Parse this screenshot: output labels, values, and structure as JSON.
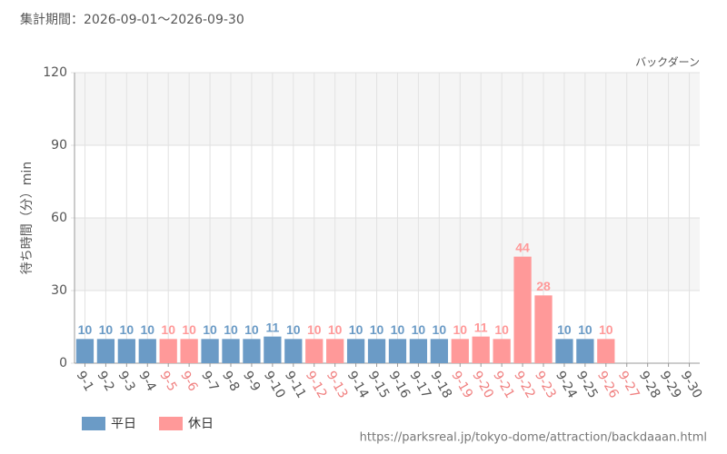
{
  "chart_data": {
    "type": "bar",
    "title": "集計期間：2026-09-01～2026-09-30",
    "subtitle": "バックダーン",
    "y_label": "待ち時間（分）min",
    "source": "https://parksreal.jp/tokyo-dome/attraction/backdaaan.html",
    "categories": [
      "9-1",
      "9-2",
      "9-3",
      "9-4",
      "9-5",
      "9-6",
      "9-7",
      "9-8",
      "9-9",
      "9-10",
      "9-11",
      "9-12",
      "9-13",
      "9-14",
      "9-15",
      "9-16",
      "9-17",
      "9-18",
      "9-19",
      "9-20",
      "9-21",
      "9-22",
      "9-23",
      "9-24",
      "9-25",
      "9-26",
      "9-27",
      "9-28",
      "9-29",
      "9-30"
    ],
    "category_colors": [
      "#555555",
      "#555555",
      "#555555",
      "#555555",
      "#f08080",
      "#f08080",
      "#555555",
      "#555555",
      "#555555",
      "#555555",
      "#555555",
      "#f08080",
      "#f08080",
      "#555555",
      "#555555",
      "#555555",
      "#555555",
      "#555555",
      "#f08080",
      "#f08080",
      "#f08080",
      "#f08080",
      "#f08080",
      "#555555",
      "#555555",
      "#f08080",
      "#f08080",
      "#555555",
      "#555555",
      "#555555"
    ],
    "series": [
      {
        "name": "平日",
        "color": "#6b9bc6",
        "values": [
          10,
          10,
          10,
          10,
          null,
          null,
          10,
          10,
          10,
          11,
          10,
          null,
          null,
          10,
          10,
          10,
          10,
          10,
          null,
          null,
          null,
          null,
          null,
          10,
          10,
          null,
          null,
          null,
          null,
          null
        ]
      },
      {
        "name": "休日",
        "color": "#ff9999",
        "values": [
          null,
          null,
          null,
          null,
          10,
          10,
          null,
          null,
          null,
          null,
          null,
          10,
          10,
          null,
          null,
          null,
          null,
          null,
          10,
          11,
          10,
          44,
          28,
          null,
          null,
          10,
          null,
          null,
          null,
          null
        ]
      }
    ],
    "ylim": [
      0,
      120
    ],
    "yticks": [
      0,
      30,
      60,
      90,
      120
    ],
    "grid": true
  }
}
